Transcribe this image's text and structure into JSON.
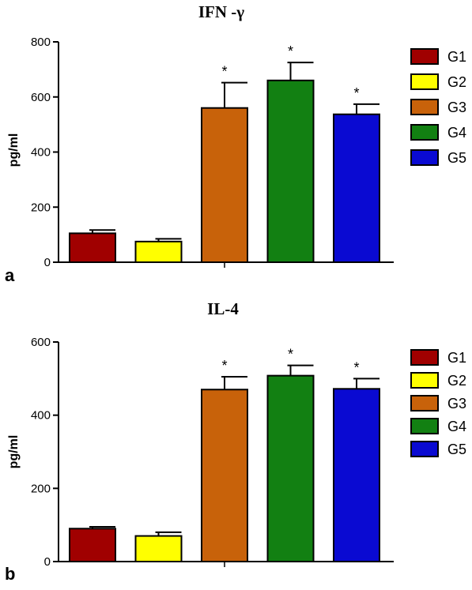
{
  "chart_data": [
    {
      "type": "bar",
      "panel_label": "a",
      "title": "IFN -γ",
      "ylabel": "pg/ml",
      "ylim": [
        0,
        800
      ],
      "yticks": [
        "0",
        "200",
        "400",
        "600",
        "800"
      ],
      "categories": [
        "G1",
        "G2",
        "G3",
        "G4",
        "G5"
      ],
      "values": [
        105,
        75,
        560,
        660,
        537
      ],
      "errors": [
        12,
        10,
        92,
        65,
        37
      ],
      "significance": [
        "",
        "",
        "*",
        "*",
        "*"
      ],
      "colors": [
        "#a00000",
        "#ffff00",
        "#c8620a",
        "#128012",
        "#0a0ad2"
      ],
      "legend": [
        "G1",
        "G2",
        "G3",
        "G4",
        "G5"
      ],
      "legend_position": "right",
      "grid": false
    },
    {
      "type": "bar",
      "panel_label": "b",
      "title": "IL-4",
      "ylabel": "pg/ml",
      "ylim": [
        0,
        600
      ],
      "yticks": [
        "0",
        "200",
        "400",
        "600"
      ],
      "categories": [
        "G1",
        "G2",
        "G3",
        "G4",
        "G5"
      ],
      "values": [
        90,
        70,
        470,
        508,
        472
      ],
      "errors": [
        5,
        10,
        35,
        28,
        28
      ],
      "significance": [
        "",
        "",
        "*",
        "*",
        "*"
      ],
      "colors": [
        "#a00000",
        "#ffff00",
        "#c8620a",
        "#128012",
        "#0a0ad2"
      ],
      "legend": [
        "G1",
        "G2",
        "G3",
        "G4",
        "G5"
      ],
      "legend_position": "right",
      "grid": false
    }
  ]
}
